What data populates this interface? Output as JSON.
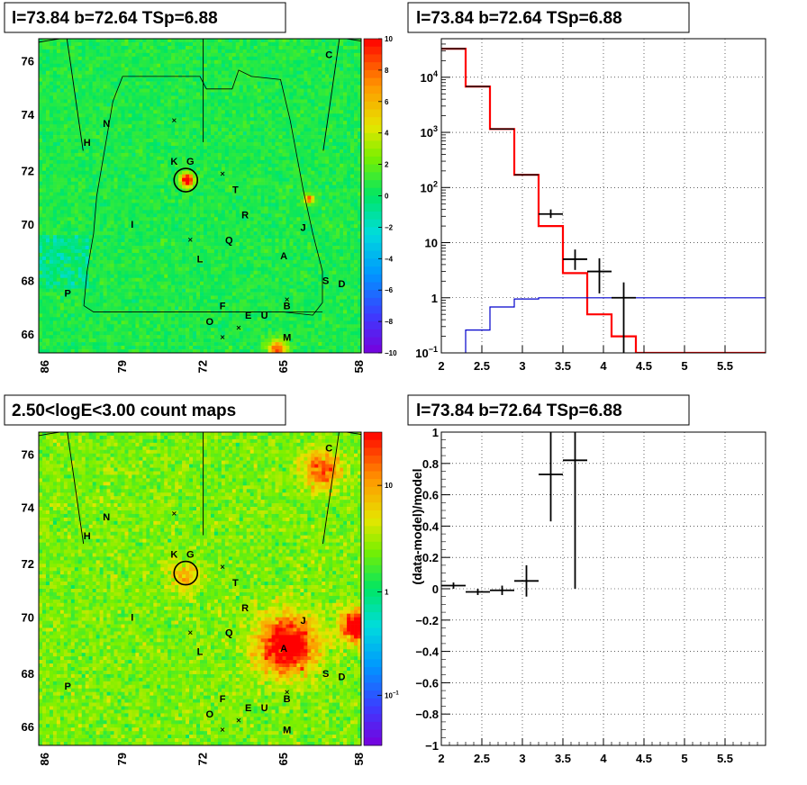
{
  "chart_data": [
    {
      "type": "heatmap",
      "title": "l=73.84 b=72.64 TSp=6.88",
      "x_ticks": [
        "86",
        "79",
        "72",
        "65",
        "58"
      ],
      "y_ticks": [
        "76",
        "74",
        "72",
        "70",
        "68",
        "66"
      ],
      "colorbar_ticks": [
        "10",
        "8",
        "6",
        "4",
        "2",
        "0",
        "−2",
        "−4",
        "−6",
        "−8",
        "−10"
      ],
      "colorbar_range": [
        -10,
        10
      ],
      "sources": [
        "C",
        "N",
        "H",
        "K",
        "G",
        "T",
        "R",
        "I",
        "J",
        "Q",
        "A",
        "L",
        "S",
        "D",
        "P",
        "F",
        "B",
        "E",
        "U",
        "O",
        "M"
      ]
    },
    {
      "type": "line",
      "title": "l=73.84 b=72.64 TSp=6.88",
      "y_scale": "log",
      "xlim": [
        2,
        6
      ],
      "ylim": [
        0.1,
        50000
      ],
      "x_ticks": [
        "2",
        "2.5",
        "3",
        "3.5",
        "4",
        "4.5",
        "5",
        "5.5"
      ],
      "y_ticks": [
        "10^4",
        "10^3",
        "10^2",
        "10",
        "1",
        "10^-1"
      ],
      "bin_edges": [
        2.0,
        2.3,
        2.6,
        2.9,
        3.2,
        3.5,
        3.8,
        4.1,
        4.4,
        6.0
      ],
      "series": [
        {
          "color": "#ff0000",
          "values": [
            33000,
            6800,
            1150,
            170,
            20,
            2.8,
            0.5,
            0.2,
            0.1
          ]
        },
        {
          "color": "#0000cc",
          "values": [
            0.08,
            0.26,
            0.68,
            0.95,
            1.0,
            1.0,
            1.0,
            1.0,
            1.0
          ]
        }
      ],
      "points": [
        {
          "x": 3.35,
          "y": 33,
          "xerr": 0.15,
          "ylo": 28,
          "yhi": 40
        },
        {
          "x": 3.65,
          "y": 5,
          "xerr": 0.15,
          "ylo": 3.2,
          "yhi": 7.5
        },
        {
          "x": 3.95,
          "y": 3,
          "xerr": 0.15,
          "ylo": 1.2,
          "yhi": 5.2
        },
        {
          "x": 4.25,
          "y": 1,
          "xerr": 0.15,
          "ylo": 0.1,
          "yhi": 1.9
        }
      ]
    },
    {
      "type": "heatmap",
      "title": "2.50<logE<3.00 count maps",
      "x_ticks": [
        "86",
        "79",
        "72",
        "65",
        "58"
      ],
      "y_ticks": [
        "76",
        "74",
        "72",
        "70",
        "68",
        "66"
      ],
      "colorbar_ticks": [
        "10",
        "1",
        "10^-1"
      ],
      "sources": [
        "C",
        "N",
        "H",
        "K",
        "G",
        "T",
        "R",
        "I",
        "J",
        "Q",
        "A",
        "L",
        "S",
        "D",
        "P",
        "F",
        "B",
        "E",
        "U",
        "O",
        "M"
      ]
    },
    {
      "type": "scatter",
      "title": "l=73.84 b=72.64 TSp=6.88",
      "ylabel": "(data-model)/model",
      "xlim": [
        2,
        6
      ],
      "ylim": [
        -1,
        1
      ],
      "x_ticks": [
        "2",
        "2.5",
        "3",
        "3.5",
        "4",
        "4.5",
        "5",
        "5.5"
      ],
      "y_ticks": [
        "1",
        "0.8",
        "0.6",
        "0.4",
        "0.2",
        "0",
        "−0.2",
        "−0.4",
        "−0.6",
        "−0.8",
        "−1"
      ],
      "points": [
        {
          "x": 2.15,
          "y": 0.02,
          "xerr": 0.15,
          "yerr": 0.02
        },
        {
          "x": 2.45,
          "y": -0.02,
          "xerr": 0.15,
          "yerr": 0.02
        },
        {
          "x": 2.75,
          "y": -0.01,
          "xerr": 0.15,
          "yerr": 0.03
        },
        {
          "x": 3.05,
          "y": 0.05,
          "xerr": 0.15,
          "yerr": 0.1
        },
        {
          "x": 3.35,
          "y": 0.73,
          "xerr": 0.15,
          "yerr": 0.3
        },
        {
          "x": 3.65,
          "y": 0.82,
          "xerr": 0.15,
          "yerr": 0.82
        }
      ]
    }
  ]
}
